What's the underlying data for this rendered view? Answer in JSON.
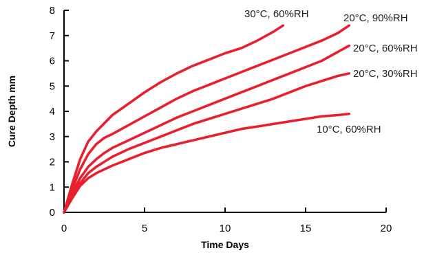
{
  "chart_data": {
    "type": "line",
    "title": "",
    "xlabel": "Time Days",
    "ylabel": "Cure Depth mm",
    "xlim": [
      0,
      20
    ],
    "ylim": [
      0,
      8
    ],
    "xticks": [
      0,
      5,
      10,
      15,
      20
    ],
    "yticks": [
      0,
      1,
      2,
      3,
      4,
      5,
      6,
      7,
      8
    ],
    "grid": false,
    "legend": "inline labels at line ends",
    "line_color": "#e8202e",
    "series": [
      {
        "name": "30°C, 60%RH",
        "x": [
          0,
          0.5,
          1,
          1.5,
          2,
          3,
          4,
          5,
          6,
          7,
          8,
          9,
          10,
          11,
          12,
          13,
          13.6
        ],
        "y": [
          0,
          1.1,
          2.1,
          2.8,
          3.2,
          3.85,
          4.3,
          4.75,
          5.15,
          5.5,
          5.8,
          6.05,
          6.3,
          6.5,
          6.8,
          7.15,
          7.4
        ]
      },
      {
        "name": "20°C, 90%RH",
        "x": [
          0,
          0.5,
          1,
          1.5,
          2,
          2.5,
          3,
          4,
          5,
          6,
          7,
          8,
          9,
          10,
          11,
          12,
          13,
          14,
          15,
          16,
          17,
          17.7
        ],
        "y": [
          0,
          0.9,
          1.7,
          2.3,
          2.7,
          2.95,
          3.1,
          3.45,
          3.8,
          4.15,
          4.5,
          4.8,
          5.05,
          5.3,
          5.55,
          5.8,
          6.05,
          6.3,
          6.55,
          6.8,
          7.1,
          7.4
        ]
      },
      {
        "name": "20°C, 60%RH",
        "x": [
          0,
          0.5,
          1,
          1.5,
          2,
          2.5,
          3,
          4,
          5,
          6,
          7,
          8,
          9,
          10,
          11,
          12,
          13,
          14,
          15,
          16,
          17,
          17.7
        ],
        "y": [
          0,
          0.75,
          1.35,
          1.8,
          2.1,
          2.35,
          2.55,
          2.85,
          3.15,
          3.45,
          3.75,
          4.0,
          4.25,
          4.5,
          4.75,
          5.0,
          5.25,
          5.5,
          5.75,
          6.0,
          6.35,
          6.6
        ]
      },
      {
        "name": "20°C, 30%RH",
        "x": [
          0,
          0.5,
          1,
          1.5,
          2,
          2.5,
          3,
          4,
          5,
          6,
          7,
          8,
          9,
          10,
          11,
          12,
          13,
          14,
          15,
          16,
          17,
          17.7
        ],
        "y": [
          0,
          0.6,
          1.15,
          1.55,
          1.8,
          2.0,
          2.2,
          2.5,
          2.75,
          3.0,
          3.25,
          3.5,
          3.7,
          3.9,
          4.1,
          4.3,
          4.5,
          4.75,
          5.0,
          5.2,
          5.4,
          5.5
        ]
      },
      {
        "name": "10°C, 60%RH",
        "x": [
          0,
          0.5,
          1,
          1.5,
          2,
          2.5,
          3,
          4,
          5,
          6,
          7,
          8,
          9,
          10,
          11,
          12,
          13,
          14,
          15,
          16,
          17,
          17.7
        ],
        "y": [
          0,
          0.55,
          1.05,
          1.35,
          1.55,
          1.7,
          1.85,
          2.1,
          2.35,
          2.55,
          2.7,
          2.85,
          3.0,
          3.15,
          3.3,
          3.4,
          3.5,
          3.6,
          3.7,
          3.8,
          3.85,
          3.9
        ]
      }
    ]
  }
}
